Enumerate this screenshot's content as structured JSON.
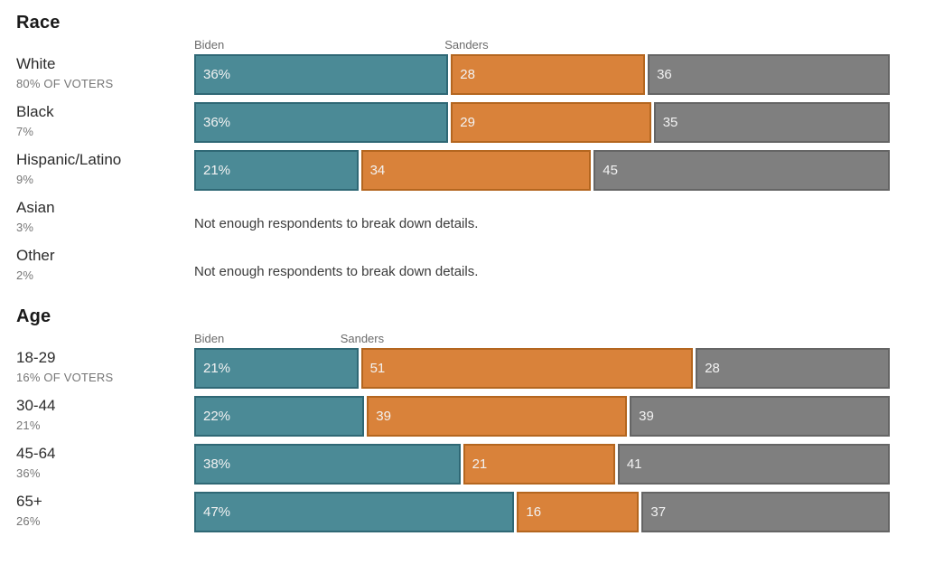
{
  "colors": {
    "biden_fill": "#4b8a96",
    "biden_border": "#2f6875",
    "sanders_fill": "#d9823a",
    "sanders_border": "#b4661f",
    "other_fill": "#7f7f7f",
    "other_border": "#656565",
    "bar_text": "#f2f2f2"
  },
  "chart_data": [
    {
      "type": "bar",
      "orientation": "horizontal",
      "stacked": true,
      "title": "Race",
      "xlim": [
        0,
        100
      ],
      "legend": [
        "Biden",
        "Sanders"
      ],
      "legend_position": "above-first-row-segments",
      "legend_sanders_offset_pct": 36,
      "rows": [
        {
          "label": "White",
          "sublabel": "80% OF VOTERS",
          "segments": [
            {
              "series": "Biden",
              "value": 36,
              "text": "36%"
            },
            {
              "series": "Sanders",
              "value": 28,
              "text": "28"
            },
            {
              "series": "unlabeled",
              "value": 36,
              "text": "36"
            }
          ]
        },
        {
          "label": "Black",
          "sublabel": "7%",
          "segments": [
            {
              "series": "Biden",
              "value": 36,
              "text": "36%"
            },
            {
              "series": "Sanders",
              "value": 29,
              "text": "29"
            },
            {
              "series": "unlabeled",
              "value": 35,
              "text": "35"
            }
          ]
        },
        {
          "label": "Hispanic/Latino",
          "sublabel": "9%",
          "segments": [
            {
              "series": "Biden",
              "value": 21,
              "text": "21%"
            },
            {
              "series": "Sanders",
              "value": 34,
              "text": "34"
            },
            {
              "series": "unlabeled",
              "value": 45,
              "text": "45"
            }
          ]
        },
        {
          "label": "Asian",
          "sublabel": "3%",
          "note": "Not enough respondents to break down details."
        },
        {
          "label": "Other",
          "sublabel": "2%",
          "note": "Not enough respondents to break down details."
        }
      ]
    },
    {
      "type": "bar",
      "orientation": "horizontal",
      "stacked": true,
      "title": "Age",
      "xlim": [
        0,
        100
      ],
      "legend": [
        "Biden",
        "Sanders"
      ],
      "legend_position": "above-first-row-segments",
      "legend_sanders_offset_pct": 21,
      "rows": [
        {
          "label": "18-29",
          "sublabel": "16% OF VOTERS",
          "segments": [
            {
              "series": "Biden",
              "value": 21,
              "text": "21%"
            },
            {
              "series": "Sanders",
              "value": 51,
              "text": "51"
            },
            {
              "series": "unlabeled",
              "value": 28,
              "text": "28"
            }
          ]
        },
        {
          "label": "30-44",
          "sublabel": "21%",
          "segments": [
            {
              "series": "Biden",
              "value": 22,
              "text": "22%"
            },
            {
              "series": "Sanders",
              "value": 39,
              "text": "39"
            },
            {
              "series": "unlabeled",
              "value": 39,
              "text": "39"
            }
          ]
        },
        {
          "label": "45-64",
          "sublabel": "36%",
          "segments": [
            {
              "series": "Biden",
              "value": 38,
              "text": "38%"
            },
            {
              "series": "Sanders",
              "value": 21,
              "text": "21"
            },
            {
              "series": "unlabeled",
              "value": 41,
              "text": "41"
            }
          ]
        },
        {
          "label": "65+",
          "sublabel": "26%",
          "segments": [
            {
              "series": "Biden",
              "value": 47,
              "text": "47%"
            },
            {
              "series": "Sanders",
              "value": 16,
              "text": "16"
            },
            {
              "series": "unlabeled",
              "value": 37,
              "text": "37"
            }
          ]
        }
      ]
    }
  ]
}
